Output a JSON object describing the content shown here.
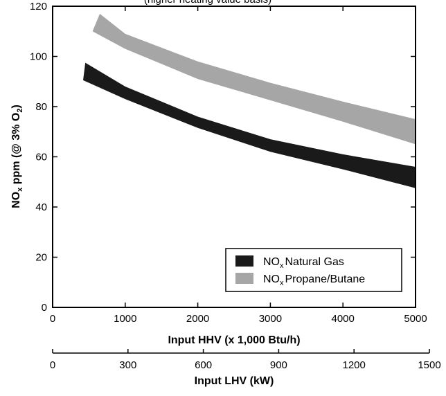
{
  "chart_data": {
    "type": "area",
    "top_text_partial": "(higher heating value basis)",
    "ylabel": {
      "main": "NO",
      "sub": "x",
      "rest": " ppm (@ 3% O",
      "sub2": "2",
      "end": ")"
    },
    "xlabel": "Input HHV (x 1,000 Btu/h)",
    "x2label": "Input LHV (kW)",
    "xlim": [
      0,
      5000
    ],
    "ylim": [
      0,
      120
    ],
    "x_ticks": [
      0,
      1000,
      2000,
      3000,
      4000,
      5000
    ],
    "y_ticks": [
      0,
      20,
      40,
      60,
      80,
      100,
      120
    ],
    "x2_ticks": [
      0,
      300,
      600,
      900,
      1200,
      1500
    ],
    "x2_max": 1500,
    "legend": {
      "placement": "bottom-right"
    },
    "series": [
      {
        "name_main": "NO",
        "name_sub": "x",
        "name_rest": "Natural Gas",
        "color": "#1a1a1a",
        "upper": [
          [
            450,
            97.5
          ],
          [
            1000,
            88
          ],
          [
            2000,
            76
          ],
          [
            3000,
            67
          ],
          [
            4000,
            61
          ],
          [
            5000,
            56
          ]
        ],
        "lower": [
          [
            420,
            90.5
          ],
          [
            1000,
            83
          ],
          [
            2000,
            71.5
          ],
          [
            3000,
            62
          ],
          [
            4000,
            55
          ],
          [
            5000,
            47.5
          ]
        ]
      },
      {
        "name_main": "NO",
        "name_sub": "x",
        "name_rest": "Propane/Butane",
        "color": "#a6a6a6",
        "upper": [
          [
            650,
            117
          ],
          [
            1000,
            109
          ],
          [
            2000,
            98
          ],
          [
            3000,
            89.5
          ],
          [
            4000,
            82
          ],
          [
            5000,
            75
          ]
        ],
        "lower": [
          [
            550,
            110
          ],
          [
            1000,
            103
          ],
          [
            2000,
            91
          ],
          [
            3000,
            82.5
          ],
          [
            4000,
            74
          ],
          [
            5000,
            65
          ]
        ]
      }
    ]
  }
}
